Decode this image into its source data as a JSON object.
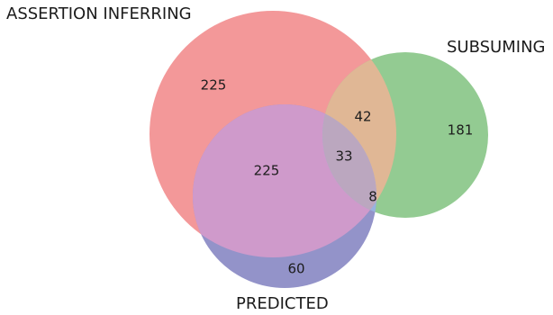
{
  "sets": {
    "assertion_inferring": {
      "label": "ASSERTION INFERRING",
      "color": "#ee7279"
    },
    "subsuming": {
      "label": "SUBSUMING",
      "color": "#6fbc69"
    },
    "predicted": {
      "label": "PREDICTED",
      "color": "#6c6cb4"
    }
  },
  "regions": {
    "assertion_inferring_only": "225",
    "assertion_inferring_and_predicted": "225",
    "assertion_inferring_and_subsuming": "42",
    "all_three": "33",
    "subsuming_only": "181",
    "subsuming_and_predicted": "8",
    "predicted_only": "60"
  }
}
